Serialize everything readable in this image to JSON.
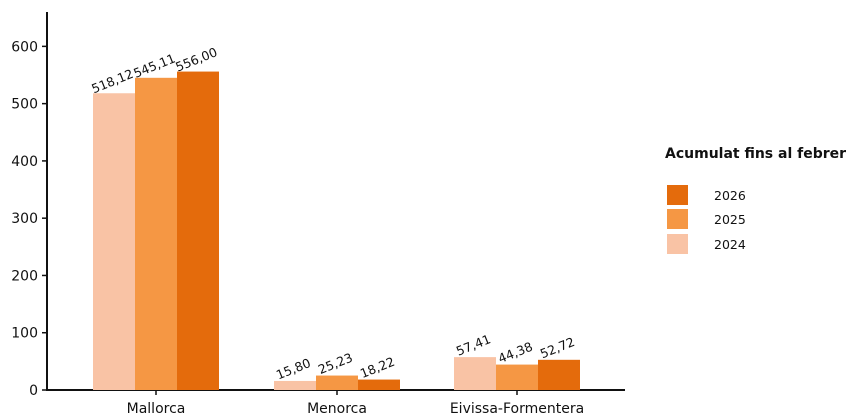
{
  "chart_data": {
    "type": "bar",
    "categories": [
      "Mallorca",
      "Menorca",
      "Eivissa-Formentera"
    ],
    "series": [
      {
        "name": "2024",
        "color": "#F9C3A5",
        "values": [
          518.12,
          15.8,
          57.41
        ],
        "labels": [
          "518,12",
          "15,80",
          "57,41"
        ]
      },
      {
        "name": "2025",
        "color": "#F59744",
        "values": [
          545.11,
          25.23,
          44.38
        ],
        "labels": [
          "545,11",
          "25,23",
          "44,38"
        ]
      },
      {
        "name": "2026",
        "color": "#E46B0C",
        "values": [
          556.0,
          18.22,
          52.72
        ],
        "labels": [
          "556,00",
          "18,22",
          "52,72"
        ]
      }
    ],
    "yticks": [
      0,
      100,
      200,
      300,
      400,
      500,
      600
    ],
    "ylim": [
      0,
      660
    ],
    "grid": false,
    "legend": {
      "title": "Acumulat fins al febrer",
      "placement": "right",
      "order": [
        "2026",
        "2025",
        "2024"
      ]
    }
  }
}
